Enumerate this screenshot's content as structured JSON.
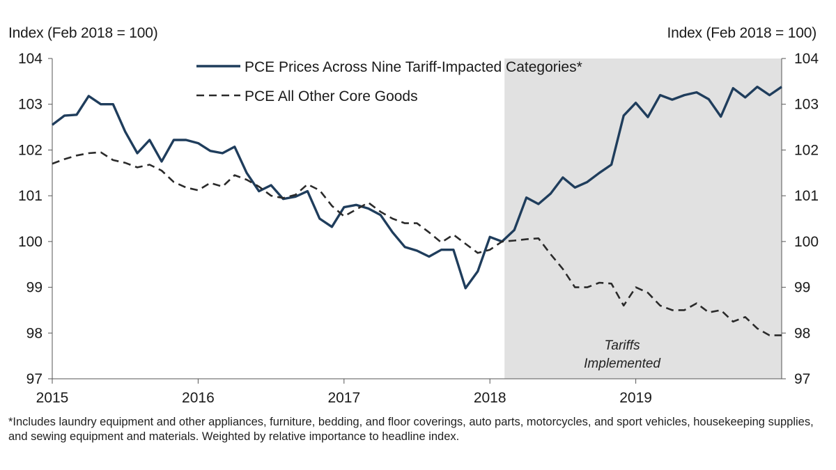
{
  "chart_data": {
    "type": "line",
    "ylabel_left": "Index (Feb 2018 = 100)",
    "ylabel_right": "Index (Feb 2018 = 100)",
    "ylim": [
      97,
      104
    ],
    "yticks": [
      97,
      98,
      99,
      100,
      101,
      102,
      103,
      104
    ],
    "xlim": [
      2015,
      2020
    ],
    "xticks": [
      2015,
      2016,
      2017,
      2018,
      2019
    ],
    "shaded_region": {
      "x_start": 2018.1,
      "x_end": 2020,
      "color": "#dcdcdc",
      "label_line1": "Tariffs",
      "label_line2": "Implemented"
    },
    "series": [
      {
        "name": "PCE Prices Across Nine Tariff-Impacted Categories*",
        "style": "solid",
        "color": "#1f3d5c",
        "x": [
          2015.0,
          2015.083,
          2015.167,
          2015.25,
          2015.333,
          2015.417,
          2015.5,
          2015.583,
          2015.667,
          2015.75,
          2015.833,
          2015.917,
          2016.0,
          2016.083,
          2016.167,
          2016.25,
          2016.333,
          2016.417,
          2016.5,
          2016.583,
          2016.667,
          2016.75,
          2016.833,
          2016.917,
          2017.0,
          2017.083,
          2017.167,
          2017.25,
          2017.333,
          2017.417,
          2017.5,
          2017.583,
          2017.667,
          2017.75,
          2017.833,
          2017.917,
          2018.0,
          2018.083,
          2018.167,
          2018.25,
          2018.333,
          2018.417,
          2018.5,
          2018.583,
          2018.667,
          2018.75,
          2018.833,
          2018.917,
          2019.0,
          2019.083,
          2019.167,
          2019.25,
          2019.333,
          2019.417,
          2019.5,
          2019.583,
          2019.667,
          2019.75,
          2019.833,
          2019.917,
          2020.0
        ],
        "values": [
          102.55,
          102.75,
          102.77,
          103.18,
          103.0,
          103.0,
          102.4,
          101.93,
          102.22,
          101.75,
          102.22,
          102.22,
          102.15,
          101.98,
          101.93,
          102.07,
          101.5,
          101.1,
          101.23,
          100.93,
          100.98,
          101.1,
          100.5,
          100.32,
          100.75,
          100.8,
          100.72,
          100.58,
          100.2,
          99.88,
          99.8,
          99.67,
          99.82,
          99.82,
          98.98,
          99.35,
          100.1,
          100.0,
          100.25,
          100.96,
          100.82,
          101.05,
          101.4,
          101.18,
          101.3,
          101.5,
          101.68,
          102.75,
          103.03,
          102.72,
          103.2,
          103.1,
          103.2,
          103.26,
          103.11,
          102.73,
          103.35,
          103.15,
          103.38,
          103.2,
          103.38
        ]
      },
      {
        "name": "PCE All Other Core Goods",
        "style": "dashed",
        "color": "#2a2a2a",
        "x": [
          2015.0,
          2015.083,
          2015.167,
          2015.25,
          2015.333,
          2015.417,
          2015.5,
          2015.583,
          2015.667,
          2015.75,
          2015.833,
          2015.917,
          2016.0,
          2016.083,
          2016.167,
          2016.25,
          2016.333,
          2016.417,
          2016.5,
          2016.583,
          2016.667,
          2016.75,
          2016.833,
          2016.917,
          2017.0,
          2017.083,
          2017.167,
          2017.25,
          2017.333,
          2017.417,
          2017.5,
          2017.583,
          2017.667,
          2017.75,
          2017.833,
          2017.917,
          2018.0,
          2018.083,
          2018.167,
          2018.25,
          2018.333,
          2018.417,
          2018.5,
          2018.583,
          2018.667,
          2018.75,
          2018.833,
          2018.917,
          2019.0,
          2019.083,
          2019.167,
          2019.25,
          2019.333,
          2019.417,
          2019.5,
          2019.583,
          2019.667,
          2019.75,
          2019.833,
          2019.917,
          2020.0
        ],
        "values": [
          101.7,
          101.8,
          101.88,
          101.93,
          101.95,
          101.78,
          101.72,
          101.62,
          101.68,
          101.55,
          101.3,
          101.18,
          101.12,
          101.28,
          101.2,
          101.45,
          101.35,
          101.2,
          101.0,
          100.95,
          101.02,
          101.25,
          101.12,
          100.78,
          100.55,
          100.7,
          100.85,
          100.65,
          100.5,
          100.4,
          100.4,
          100.2,
          99.98,
          100.15,
          99.95,
          99.75,
          99.82,
          100.0,
          100.02,
          100.05,
          100.07,
          99.72,
          99.4,
          99.0,
          99.0,
          99.1,
          99.08,
          98.6,
          99.0,
          98.88,
          98.6,
          98.5,
          98.5,
          98.65,
          98.45,
          98.5,
          98.25,
          98.35,
          98.1,
          97.95,
          97.95
        ]
      }
    ],
    "footnote": "*Includes laundry equipment and other appliances, furniture, bedding, and floor coverings, auto parts, motorcycles, and sport vehicles, housekeeping supplies, and sewing equipment and materials. Weighted by relative importance to headline index."
  }
}
